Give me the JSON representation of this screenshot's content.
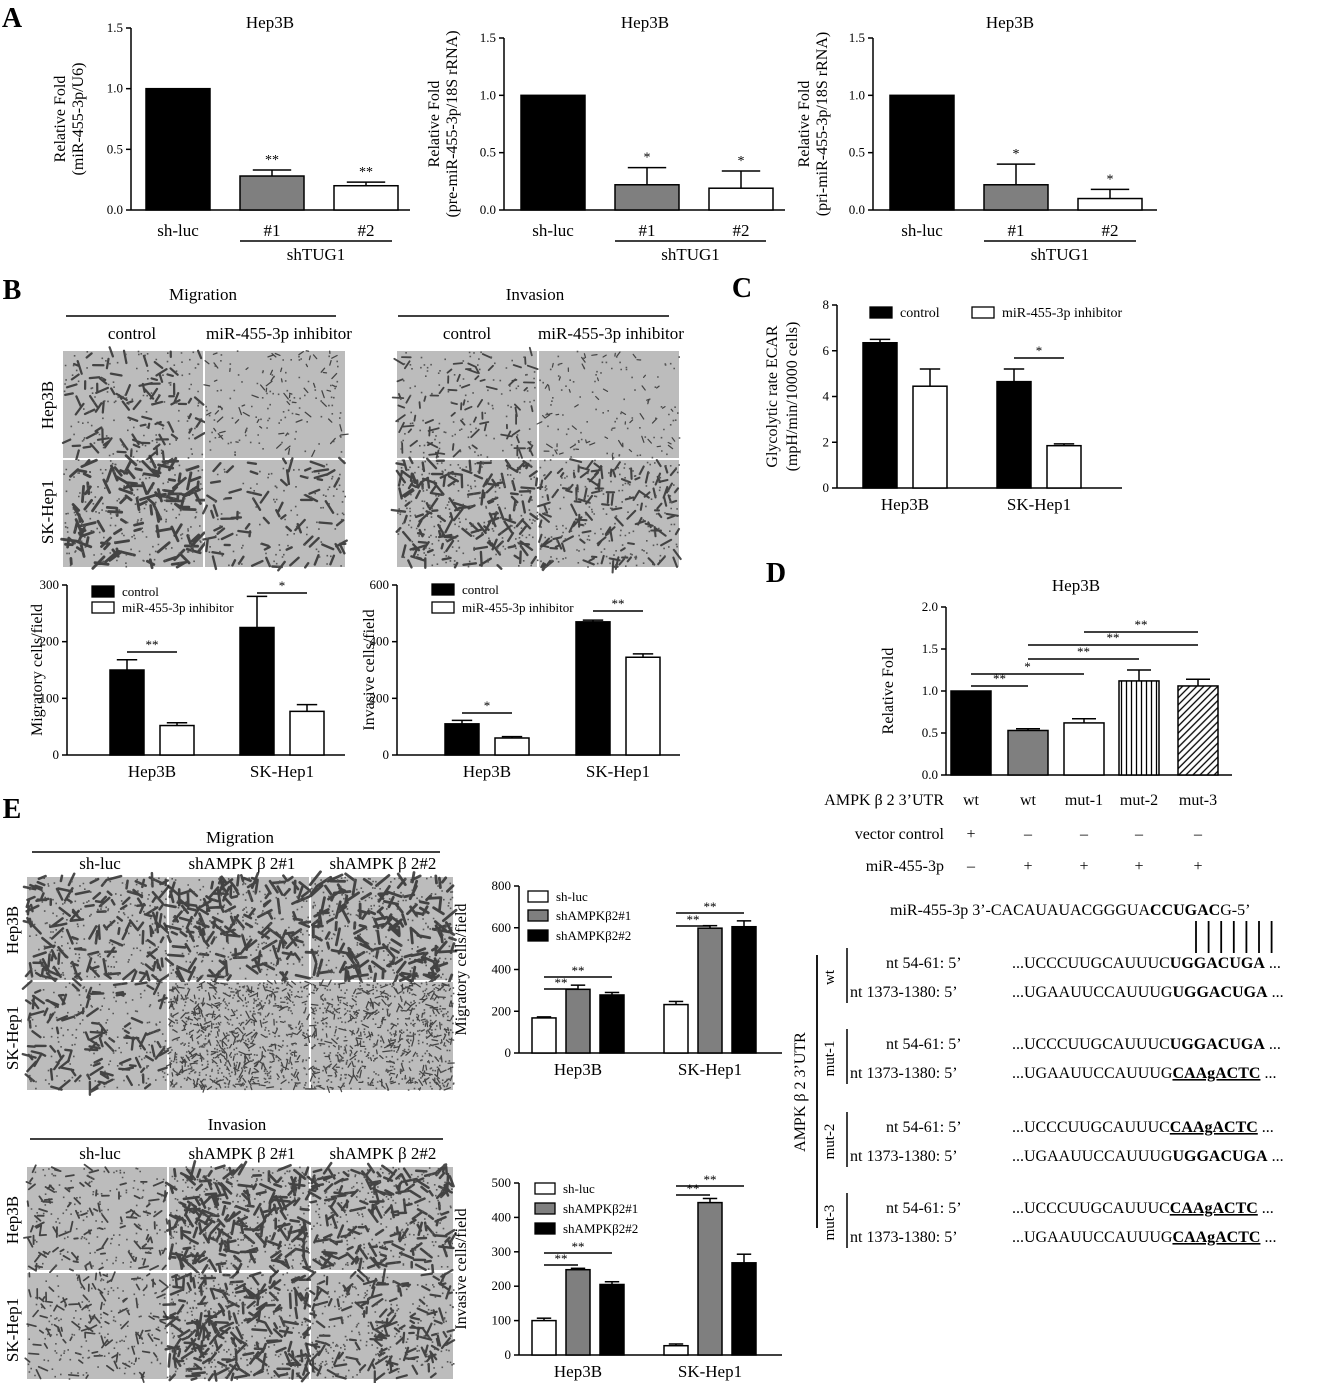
{
  "panel_labels": {
    "A": "A",
    "B": "B",
    "C": "C",
    "D": "D",
    "E": "E"
  },
  "colors": {
    "black": "#000000",
    "gray": "#7f7f7f",
    "white": "#ffffff",
    "micro_bg": "#bdbdbd",
    "cell": "#3a3a3a"
  },
  "chart_data": [
    {
      "id": "A1",
      "type": "bar",
      "title": "Hep3B",
      "ylabel": [
        "Relative Fold",
        "(miR-455-3p/U6)"
      ],
      "ylim": [
        0,
        1.5
      ],
      "yticks": [
        0.0,
        0.5,
        1.0,
        1.5
      ],
      "ytick_labels": [
        "0.0",
        "0.5",
        "1.0",
        "1.5"
      ],
      "categories": [
        "sh-luc",
        "#1",
        "#2"
      ],
      "group_label": "shTUG1",
      "values": [
        1.0,
        0.28,
        0.2
      ],
      "errors": [
        0,
        0.05,
        0.03
      ],
      "fills": [
        "black",
        "gray",
        "white"
      ],
      "annotations": [
        "",
        "**",
        "**"
      ]
    },
    {
      "id": "A2",
      "type": "bar",
      "title": "Hep3B",
      "ylabel": [
        "Relative Fold",
        "(pre-miR-455-3p/18S rRNA)"
      ],
      "ylim": [
        0,
        1.5
      ],
      "yticks": [
        0.0,
        0.5,
        1.0,
        1.5
      ],
      "ytick_labels": [
        "0.0",
        "0.5",
        "1.0",
        "1.5"
      ],
      "categories": [
        "sh-luc",
        "#1",
        "#2"
      ],
      "group_label": "shTUG1",
      "values": [
        1.0,
        0.22,
        0.19
      ],
      "errors": [
        0,
        0.15,
        0.15
      ],
      "fills": [
        "black",
        "gray",
        "white"
      ],
      "annotations": [
        "",
        "*",
        "*"
      ]
    },
    {
      "id": "A3",
      "type": "bar",
      "title": "Hep3B",
      "ylabel": [
        "Relative Fold",
        "(pri-miR-455-3p/18S rRNA)"
      ],
      "ylim": [
        0,
        1.5
      ],
      "yticks": [
        0.0,
        0.5,
        1.0,
        1.5
      ],
      "ytick_labels": [
        "0.0",
        "0.5",
        "1.0",
        "1.5"
      ],
      "categories": [
        "sh-luc",
        "#1",
        "#2"
      ],
      "group_label": "shTUG1",
      "values": [
        1.0,
        0.22,
        0.1
      ],
      "errors": [
        0,
        0.18,
        0.08
      ],
      "fills": [
        "black",
        "gray",
        "white"
      ],
      "annotations": [
        "",
        "*",
        "*"
      ]
    },
    {
      "id": "B1",
      "type": "bar",
      "ylabel": [
        "Migratory cells/field"
      ],
      "ylim": [
        0,
        300
      ],
      "yticks": [
        0,
        100,
        200,
        300
      ],
      "ytick_labels": [
        "0",
        "100",
        "200",
        "300"
      ],
      "categories": [
        "Hep3B",
        "SK-Hep1"
      ],
      "legend": [
        "control",
        "miR-455-3p inhibitor"
      ],
      "series": [
        {
          "name": "control",
          "fill": "black",
          "values": [
            150,
            225
          ],
          "errors": [
            18,
            55
          ]
        },
        {
          "name": "miR-455-3p inhibitor",
          "fill": "white",
          "values": [
            52,
            77
          ],
          "errors": [
            5,
            12
          ]
        }
      ],
      "significance": [
        "**",
        "*"
      ]
    },
    {
      "id": "B2",
      "type": "bar",
      "ylabel": [
        "Invasive cells/field"
      ],
      "ylim": [
        0,
        600
      ],
      "yticks": [
        0,
        200,
        400,
        600
      ],
      "ytick_labels": [
        "0",
        "200",
        "400",
        "600"
      ],
      "categories": [
        "Hep3B",
        "SK-Hep1"
      ],
      "legend": [
        "control",
        "miR-455-3p inhibitor"
      ],
      "series": [
        {
          "name": "control",
          "fill": "black",
          "values": [
            110,
            470
          ],
          "errors": [
            12,
            6
          ]
        },
        {
          "name": "miR-455-3p inhibitor",
          "fill": "white",
          "values": [
            60,
            345
          ],
          "errors": [
            5,
            12
          ]
        }
      ],
      "significance": [
        "*",
        "**"
      ]
    },
    {
      "id": "C",
      "type": "bar",
      "ylabel": [
        "Glycolytic rate ECAR",
        "(mpH/min/10000 cells)"
      ],
      "ylim": [
        0,
        8
      ],
      "yticks": [
        0,
        2,
        4,
        6,
        8
      ],
      "ytick_labels": [
        "0",
        "2",
        "4",
        "6",
        "8"
      ],
      "categories": [
        "Hep3B",
        "SK-Hep1"
      ],
      "legend": [
        "control",
        "miR-455-3p inhibitor"
      ],
      "series": [
        {
          "name": "control",
          "fill": "black",
          "values": [
            6.35,
            4.65
          ],
          "errors": [
            0.15,
            0.55
          ]
        },
        {
          "name": "miR-455-3p inhibitor",
          "fill": "white",
          "values": [
            4.45,
            1.85
          ],
          "errors": [
            0.75,
            0.08
          ]
        }
      ],
      "significance": [
        "",
        "*"
      ]
    },
    {
      "id": "D",
      "type": "bar",
      "title": "Hep3B",
      "ylabel": [
        "Relative Fold"
      ],
      "ylim": [
        0,
        2.0
      ],
      "yticks": [
        0.0,
        0.5,
        1.0,
        1.5,
        2.0
      ],
      "ytick_labels": [
        "0.0",
        "0.5",
        "1.0",
        "1.5",
        "2.0"
      ],
      "values": [
        1.0,
        0.53,
        0.62,
        1.12,
        1.06
      ],
      "errors": [
        0,
        0.02,
        0.05,
        0.13,
        0.08
      ],
      "fills": [
        "black",
        "gray",
        "white",
        "vstripe",
        "diag"
      ],
      "brackets": [
        {
          "from": 0,
          "to": 1,
          "label": "**"
        },
        {
          "from": 0,
          "to": 2,
          "label": "*"
        },
        {
          "from": 1,
          "to": 3,
          "label": "**"
        },
        {
          "from": 1,
          "to": 4,
          "label": "**"
        },
        {
          "from": 2,
          "to": 4,
          "label": "**"
        }
      ],
      "table": {
        "rows": [
          {
            "label": "AMPK β 2 3’UTR",
            "cells": [
              "wt",
              "wt",
              "mut-1",
              "mut-2",
              "mut-3"
            ]
          },
          {
            "label": "vector control",
            "cells": [
              "+",
              "–",
              "–",
              "–",
              "–"
            ]
          },
          {
            "label": "miR-455-3p",
            "cells": [
              "–",
              "+",
              "+",
              "+",
              "+"
            ]
          }
        ]
      }
    },
    {
      "id": "E1",
      "type": "bar",
      "ylabel": [
        "Migratory cells/field"
      ],
      "ylim": [
        0,
        800
      ],
      "yticks": [
        0,
        200,
        400,
        600,
        800
      ],
      "ytick_labels": [
        "0",
        "200",
        "400",
        "600",
        "800"
      ],
      "categories": [
        "Hep3B",
        "SK-Hep1"
      ],
      "legend": [
        "sh-luc",
        "shAMPKβ2#1",
        "shAMPKβ2#2"
      ],
      "series": [
        {
          "name": "sh-luc",
          "fill": "white",
          "values": [
            168,
            232
          ],
          "errors": [
            5,
            15
          ]
        },
        {
          "name": "shAMPKβ2#1",
          "fill": "gray",
          "values": [
            305,
            598
          ],
          "errors": [
            20,
            12
          ]
        },
        {
          "name": "shAMPKβ2#2",
          "fill": "black",
          "values": [
            278,
            605
          ],
          "errors": [
            12,
            28
          ]
        }
      ],
      "significance": [
        [
          "**",
          "**"
        ],
        [
          "**",
          "**"
        ]
      ]
    },
    {
      "id": "E2",
      "type": "bar",
      "ylabel": [
        "Invasive cells/field"
      ],
      "ylim": [
        0,
        500
      ],
      "yticks": [
        0,
        100,
        200,
        300,
        400,
        500
      ],
      "ytick_labels": [
        "0",
        "100",
        "200",
        "300",
        "400",
        "500"
      ],
      "categories": [
        "Hep3B",
        "SK-Hep1"
      ],
      "legend": [
        "sh-luc",
        "shAMPKβ2#1",
        "shAMPKβ2#2"
      ],
      "series": [
        {
          "name": "sh-luc",
          "fill": "white",
          "values": [
            100,
            27
          ],
          "errors": [
            7,
            5
          ]
        },
        {
          "name": "shAMPKβ2#1",
          "fill": "gray",
          "values": [
            248,
            443
          ],
          "errors": [
            4,
            12
          ]
        },
        {
          "name": "shAMPKβ2#2",
          "fill": "black",
          "values": [
            205,
            268
          ],
          "errors": [
            8,
            25
          ]
        }
      ],
      "significance": [
        [
          "**",
          "**"
        ],
        [
          "**",
          "**"
        ]
      ]
    }
  ],
  "micrographs": {
    "B": {
      "migration": "Migration",
      "invasion": "Invasion",
      "control": "control",
      "inhibitor": "miR-455-3p inhibitor",
      "rows": [
        "Hep3B",
        "SK-Hep1"
      ]
    },
    "E": {
      "migration": "Migration",
      "invasion": "Invasion",
      "cols": [
        "sh-luc",
        "shAMPK β 2#1",
        "shAMPK β 2#2"
      ],
      "rows": [
        "Hep3B",
        "SK-Hep1"
      ]
    }
  },
  "sequences": {
    "mir": {
      "prefix": "miR-455-3p 3’-CACAUAUACGGGUA",
      "bold": "CCUGAC",
      "suffix": "G-5’"
    },
    "side_label": "AMPK β 2 3’UTR",
    "groups": [
      {
        "name": "wt",
        "lines": [
          {
            "nt": "nt  54-61: 5’",
            "pre": "...UCCCUUGCAUUUC",
            "core": "UGGACUGA",
            "underline": false,
            "post": " ..."
          },
          {
            "nt": "nt  1373-1380: 5’",
            "pre": "...UGAAUUCCAUUUG",
            "core": "UGGACUGA",
            "underline": false,
            "post": " ..."
          }
        ]
      },
      {
        "name": "mut-1",
        "lines": [
          {
            "nt": "nt  54-61: 5’",
            "pre": "...UCCCUUGCAUUUC",
            "core": "UGGACUGA",
            "underline": false,
            "post": " ..."
          },
          {
            "nt": "nt  1373-1380: 5’",
            "pre": "...UGAAUUCCAUUUG",
            "core": "CAAgACTC",
            "underline": true,
            "post": " ..."
          }
        ]
      },
      {
        "name": "mut-2",
        "lines": [
          {
            "nt": "nt  54-61: 5’",
            "pre": "...UCCCUUGCAUUUC",
            "core": "CAAgACTC",
            "underline": true,
            "post": " ..."
          },
          {
            "nt": "nt  1373-1380: 5’",
            "pre": "...UGAAUUCCAUUUG",
            "core": "UGGACUGA",
            "underline": false,
            "post": " ..."
          }
        ]
      },
      {
        "name": "mut-3",
        "lines": [
          {
            "nt": "nt  54-61: 5’",
            "pre": "...UCCCUUGCAUUUC",
            "core": "CAAgACTC",
            "underline": true,
            "post": " ..."
          },
          {
            "nt": "nt  1373-1380: 5’",
            "pre": "...UGAAUUCCAUUUG",
            "core": "CAAgACTC",
            "underline": true,
            "post": " ..."
          }
        ]
      }
    ]
  }
}
